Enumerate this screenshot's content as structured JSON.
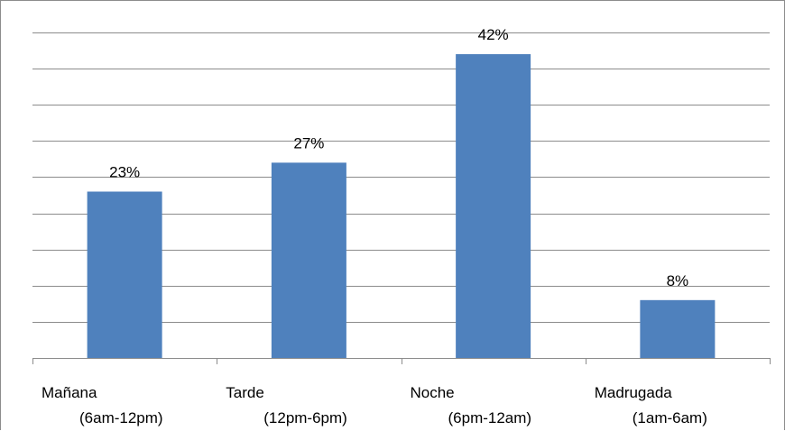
{
  "chart_data": {
    "type": "bar",
    "categories": [
      {
        "line1": "Mañana",
        "line2": "(6am-12pm)"
      },
      {
        "line1": "Tarde",
        "line2": "(12pm-6pm)"
      },
      {
        "line1": "Noche",
        "line2": "(6pm-12am)"
      },
      {
        "line1": "Madrugada",
        "line2": "(1am-6am)"
      }
    ],
    "values": [
      23,
      27,
      42,
      8
    ],
    "data_labels": [
      "23%",
      "27%",
      "42%",
      "8%"
    ],
    "unit": "%",
    "ylim": [
      0,
      45
    ],
    "grid": true,
    "legend": "none",
    "colors": {
      "bar": "#4f81bd",
      "grid": "#8c8c8c",
      "axis": "#8c8c8c"
    }
  }
}
